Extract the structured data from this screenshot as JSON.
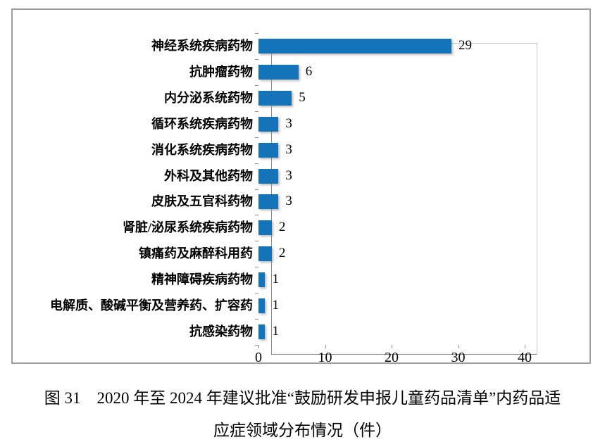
{
  "chart_data": {
    "type": "bar",
    "orientation": "horizontal",
    "categories": [
      "神经系统疾病药物",
      "抗肿瘤药物",
      "内分泌系统药物",
      "循环系统疾病药物",
      "消化系统疾病药物",
      "外科及其他药物",
      "皮肤及五官科药物",
      "肾脏/泌尿系统疾病药物",
      "镇痛药及麻醉科用药",
      "精神障碍疾病药物",
      "电解质、酸碱平衡及营养药、扩容药",
      "抗感染药物"
    ],
    "values": [
      29,
      6,
      5,
      3,
      3,
      3,
      3,
      2,
      2,
      1,
      1,
      1
    ],
    "xlim": [
      0,
      40
    ],
    "xticks": [
      0,
      10,
      20,
      30,
      40
    ],
    "grid": false,
    "legend": "none",
    "bar_color": "#1573ba",
    "axis_color": "#8c8c8c",
    "title": ""
  },
  "caption": {
    "line1": "图 31　2020 年至 2024 年建议批准“鼓励研发申报儿童药品清单”内药品适",
    "line2": "应症领域分布情况（件）"
  }
}
